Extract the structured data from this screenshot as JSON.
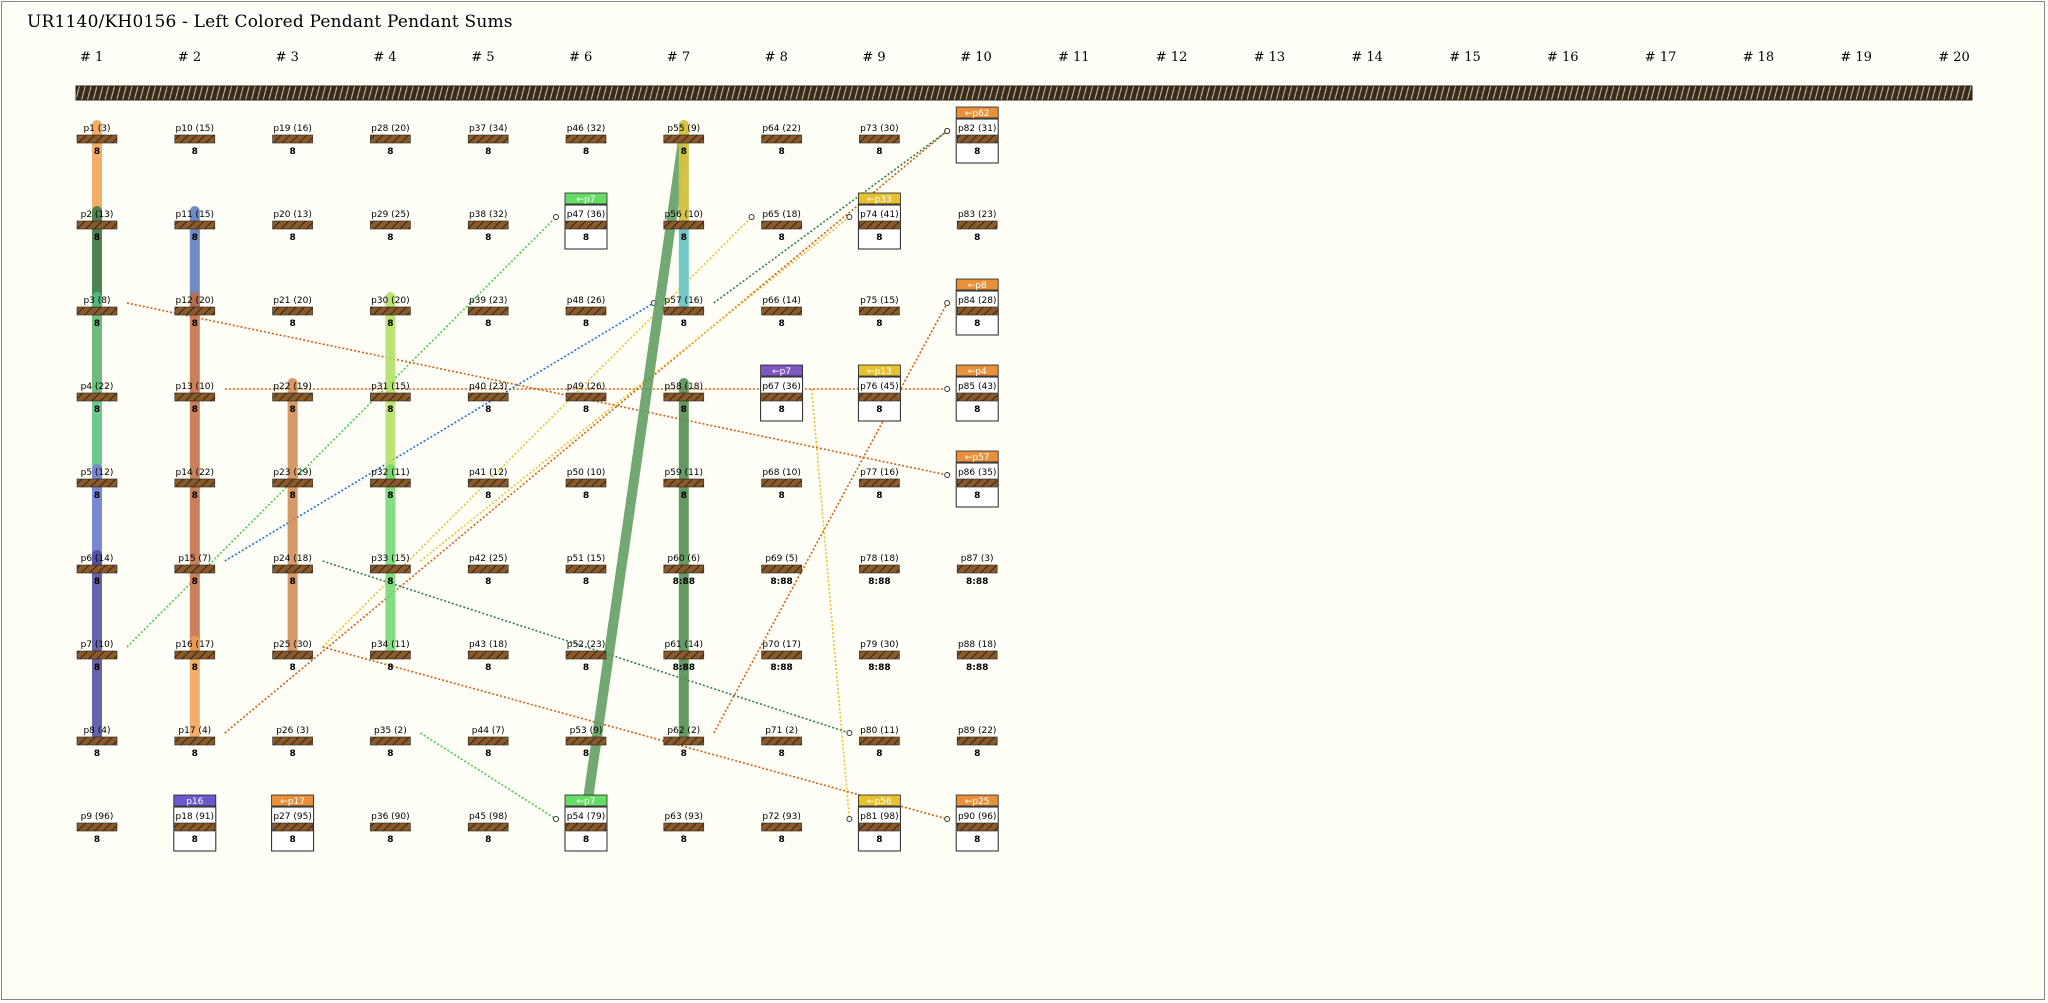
{
  "title": "UR1140/KH0156 - Left Colored Pendant Pendant Sums",
  "columns": [
    "# 1",
    "# 2",
    "# 3",
    "# 4",
    "# 5",
    "# 6",
    "# 7",
    "# 8",
    "# 9",
    "# 10",
    "# 11",
    "# 12",
    "# 13",
    "# 14",
    "# 15",
    "# 16",
    "# 17",
    "# 18",
    "# 19",
    "# 20"
  ],
  "pendants": [
    {
      "col": 1,
      "row": 1,
      "label": "p1 (3)",
      "knot": "8"
    },
    {
      "col": 1,
      "row": 2,
      "label": "p2 (13)",
      "knot": "8"
    },
    {
      "col": 1,
      "row": 3,
      "label": "p3 (8)",
      "knot": "8"
    },
    {
      "col": 1,
      "row": 4,
      "label": "p4 (22)",
      "knot": "8"
    },
    {
      "col": 1,
      "row": 5,
      "label": "p5 (12)",
      "knot": "8"
    },
    {
      "col": 1,
      "row": 6,
      "label": "p6 (14)",
      "knot": "8"
    },
    {
      "col": 1,
      "row": 7,
      "label": "p7 (10)",
      "knot": "8"
    },
    {
      "col": 1,
      "row": 8,
      "label": "p8 (4)",
      "knot": "8"
    },
    {
      "col": 1,
      "row": 9,
      "label": "p9 (96)",
      "knot": "8"
    },
    {
      "col": 2,
      "row": 1,
      "label": "p10 (15)",
      "knot": "8"
    },
    {
      "col": 2,
      "row": 2,
      "label": "p11 (15)",
      "knot": "8"
    },
    {
      "col": 2,
      "row": 3,
      "label": "p12 (20)",
      "knot": "8"
    },
    {
      "col": 2,
      "row": 4,
      "label": "p13 (10)",
      "knot": "8"
    },
    {
      "col": 2,
      "row": 5,
      "label": "p14 (22)",
      "knot": "8"
    },
    {
      "col": 2,
      "row": 6,
      "label": "p15 (7)",
      "knot": "8"
    },
    {
      "col": 2,
      "row": 7,
      "label": "p16 (17)",
      "knot": "8"
    },
    {
      "col": 2,
      "row": 8,
      "label": "p17 (4)",
      "knot": "8"
    },
    {
      "col": 2,
      "row": 9,
      "label": "p18 (91)",
      "knot": "8",
      "tag": "p16",
      "tagColor": "#6a5acd",
      "boxed": true
    },
    {
      "col": 3,
      "row": 1,
      "label": "p19 (16)",
      "knot": "8"
    },
    {
      "col": 3,
      "row": 2,
      "label": "p20 (13)",
      "knot": "8"
    },
    {
      "col": 3,
      "row": 3,
      "label": "p21 (20)",
      "knot": "8"
    },
    {
      "col": 3,
      "row": 4,
      "label": "p22 (19)",
      "knot": "8"
    },
    {
      "col": 3,
      "row": 5,
      "label": "p23 (29)",
      "knot": "8"
    },
    {
      "col": 3,
      "row": 6,
      "label": "p24 (18)",
      "knot": "8"
    },
    {
      "col": 3,
      "row": 7,
      "label": "p25 (30)",
      "knot": "8"
    },
    {
      "col": 3,
      "row": 8,
      "label": "p26 (3)",
      "knot": "8"
    },
    {
      "col": 3,
      "row": 9,
      "label": "p27 (95)",
      "knot": "8",
      "tag": "←p17",
      "tagColor": "#e8913a",
      "boxed": true
    },
    {
      "col": 4,
      "row": 1,
      "label": "p28 (20)",
      "knot": "8"
    },
    {
      "col": 4,
      "row": 2,
      "label": "p29 (25)",
      "knot": "8"
    },
    {
      "col": 4,
      "row": 3,
      "label": "p30 (20)",
      "knot": "8"
    },
    {
      "col": 4,
      "row": 4,
      "label": "p31 (15)",
      "knot": "8"
    },
    {
      "col": 4,
      "row": 5,
      "label": "p32 (11)",
      "knot": "8"
    },
    {
      "col": 4,
      "row": 6,
      "label": "p33 (15)",
      "knot": "8"
    },
    {
      "col": 4,
      "row": 7,
      "label": "p34 (11)",
      "knot": "8"
    },
    {
      "col": 4,
      "row": 8,
      "label": "p35 (2)",
      "knot": "8"
    },
    {
      "col": 4,
      "row": 9,
      "label": "p36 (90)",
      "knot": "8"
    },
    {
      "col": 5,
      "row": 1,
      "label": "p37 (34)",
      "knot": "8"
    },
    {
      "col": 5,
      "row": 2,
      "label": "p38 (32)",
      "knot": "8"
    },
    {
      "col": 5,
      "row": 3,
      "label": "p39 (23)",
      "knot": "8"
    },
    {
      "col": 5,
      "row": 4,
      "label": "p40 (23)",
      "knot": "8"
    },
    {
      "col": 5,
      "row": 5,
      "label": "p41 (12)",
      "knot": "8"
    },
    {
      "col": 5,
      "row": 6,
      "label": "p42 (25)",
      "knot": "8"
    },
    {
      "col": 5,
      "row": 7,
      "label": "p43 (18)",
      "knot": "8"
    },
    {
      "col": 5,
      "row": 8,
      "label": "p44 (7)",
      "knot": "8"
    },
    {
      "col": 5,
      "row": 9,
      "label": "p45 (98)",
      "knot": "8"
    },
    {
      "col": 6,
      "row": 1,
      "label": "p46 (32)",
      "knot": "8"
    },
    {
      "col": 6,
      "row": 2,
      "label": "p47 (36)",
      "knot": "8",
      "tag": "←p7",
      "tagColor": "#66dd66",
      "boxed": true
    },
    {
      "col": 6,
      "row": 3,
      "label": "p48 (26)",
      "knot": "8"
    },
    {
      "col": 6,
      "row": 4,
      "label": "p49 (26)",
      "knot": "8"
    },
    {
      "col": 6,
      "row": 5,
      "label": "p50 (10)",
      "knot": "8"
    },
    {
      "col": 6,
      "row": 6,
      "label": "p51 (15)",
      "knot": "8"
    },
    {
      "col": 6,
      "row": 7,
      "label": "p52 (23)",
      "knot": "8"
    },
    {
      "col": 6,
      "row": 8,
      "label": "p53 (9)",
      "knot": "8"
    },
    {
      "col": 6,
      "row": 9,
      "label": "p54 (79)",
      "knot": "8",
      "tag": "←p7",
      "tagColor": "#66dd66",
      "boxed": true
    },
    {
      "col": 7,
      "row": 1,
      "label": "p55 (9)",
      "knot": "8"
    },
    {
      "col": 7,
      "row": 2,
      "label": "p56 (10)",
      "knot": "8"
    },
    {
      "col": 7,
      "row": 3,
      "label": "p57 (16)",
      "knot": "8"
    },
    {
      "col": 7,
      "row": 4,
      "label": "p58 (18)",
      "knot": "8"
    },
    {
      "col": 7,
      "row": 5,
      "label": "p59 (11)",
      "knot": "8"
    },
    {
      "col": 7,
      "row": 6,
      "label": "p60 (6)",
      "knot": "8:88"
    },
    {
      "col": 7,
      "row": 7,
      "label": "p61 (14)",
      "knot": "8:88"
    },
    {
      "col": 7,
      "row": 8,
      "label": "p62 (2)",
      "knot": "8"
    },
    {
      "col": 7,
      "row": 9,
      "label": "p63 (93)",
      "knot": "8"
    },
    {
      "col": 8,
      "row": 1,
      "label": "p64 (22)",
      "knot": "8"
    },
    {
      "col": 8,
      "row": 2,
      "label": "p65 (18)",
      "knot": "8"
    },
    {
      "col": 8,
      "row": 3,
      "label": "p66 (14)",
      "knot": "8"
    },
    {
      "col": 8,
      "row": 4,
      "label": "p67 (36)",
      "knot": "8",
      "tag": "←p7",
      "tagColor": "#7e57c2",
      "boxed": true
    },
    {
      "col": 8,
      "row": 5,
      "label": "p68 (10)",
      "knot": "8"
    },
    {
      "col": 8,
      "row": 6,
      "label": "p69 (5)",
      "knot": "8:88"
    },
    {
      "col": 8,
      "row": 7,
      "label": "p70 (17)",
      "knot": "8:88"
    },
    {
      "col": 8,
      "row": 8,
      "label": "p71 (2)",
      "knot": "8"
    },
    {
      "col": 8,
      "row": 9,
      "label": "p72 (93)",
      "knot": "8"
    },
    {
      "col": 9,
      "row": 1,
      "label": "p73 (30)",
      "knot": "8"
    },
    {
      "col": 9,
      "row": 2,
      "label": "p74 (41)",
      "knot": "8",
      "tag": "←p33",
      "tagColor": "#e6c230",
      "boxed": true
    },
    {
      "col": 9,
      "row": 3,
      "label": "p75 (15)",
      "knot": "8"
    },
    {
      "col": 9,
      "row": 4,
      "label": "p76 (45)",
      "knot": "8",
      "tag": "←p13",
      "tagColor": "#e6c230",
      "boxed": true
    },
    {
      "col": 9,
      "row": 5,
      "label": "p77 (16)",
      "knot": "8"
    },
    {
      "col": 9,
      "row": 6,
      "label": "p78 (18)",
      "knot": "8:88"
    },
    {
      "col": 9,
      "row": 7,
      "label": "p79 (30)",
      "knot": "8:88"
    },
    {
      "col": 9,
      "row": 8,
      "label": "p80 (11)",
      "knot": "8"
    },
    {
      "col": 9,
      "row": 9,
      "label": "p81 (98)",
      "knot": "8",
      "tag": "←p56",
      "tagColor": "#e6c230",
      "boxed": true
    },
    {
      "col": 10,
      "row": 1,
      "label": "p82 (31)",
      "knot": "8",
      "tag": "←p62",
      "tagColor": "#e8913a",
      "boxed": true
    },
    {
      "col": 10,
      "row": 2,
      "label": "p83 (23)",
      "knot": "8"
    },
    {
      "col": 10,
      "row": 3,
      "label": "p84 (28)",
      "knot": "8",
      "tag": "←p8",
      "tagColor": "#e8913a",
      "boxed": true
    },
    {
      "col": 10,
      "row": 4,
      "label": "p85 (43)",
      "knot": "8",
      "tag": "←p4",
      "tagColor": "#e8913a",
      "boxed": true
    },
    {
      "col": 10,
      "row": 5,
      "label": "p86 (35)",
      "knot": "8",
      "tag": "←p57",
      "tagColor": "#e8913a",
      "boxed": true
    },
    {
      "col": 10,
      "row": 6,
      "label": "p87 (3)",
      "knot": "8:88"
    },
    {
      "col": 10,
      "row": 7,
      "label": "p88 (18)",
      "knot": "8:88"
    },
    {
      "col": 10,
      "row": 8,
      "label": "p89 (22)",
      "knot": "8"
    },
    {
      "col": 10,
      "row": 9,
      "label": "p90 (96)",
      "knot": "8",
      "tag": "←p25",
      "tagColor": "#e8913a",
      "boxed": true
    }
  ],
  "cords": [
    {
      "from": [
        1,
        1
      ],
      "to": [
        1,
        4
      ],
      "color": "#f0a050"
    },
    {
      "from": [
        1,
        2
      ],
      "to": [
        1,
        3
      ],
      "color": "#2e7d4f"
    },
    {
      "from": [
        1,
        3
      ],
      "to": [
        1,
        6
      ],
      "color": "#55c080"
    },
    {
      "from": [
        1,
        5
      ],
      "to": [
        1,
        6
      ],
      "color": "#7b7bdd"
    },
    {
      "from": [
        1,
        6
      ],
      "to": [
        1,
        8
      ],
      "color": "#4a4a9a"
    },
    {
      "from": [
        2,
        2
      ],
      "to": [
        2,
        3
      ],
      "color": "#5577bb"
    },
    {
      "from": [
        2,
        3
      ],
      "to": [
        2,
        7
      ],
      "color": "#c06a40"
    },
    {
      "from": [
        2,
        7
      ],
      "to": [
        2,
        8
      ],
      "color": "#f0a050"
    },
    {
      "from": [
        3,
        4
      ],
      "to": [
        3,
        7
      ],
      "color": "#d08850"
    },
    {
      "from": [
        4,
        3
      ],
      "to": [
        4,
        5
      ],
      "color": "#aee060"
    },
    {
      "from": [
        4,
        5
      ],
      "to": [
        4,
        7
      ],
      "color": "#6ed86e"
    },
    {
      "from": [
        6,
        9
      ],
      "to": [
        7,
        1
      ],
      "color": "#5a9a5a"
    },
    {
      "from": [
        7,
        1
      ],
      "to": [
        7,
        3
      ],
      "color": "#5bc0c0"
    },
    {
      "from": [
        7,
        4
      ],
      "to": [
        7,
        8
      ],
      "color": "#4a8a4a"
    },
    {
      "from": [
        7,
        1
      ],
      "to": [
        7,
        2
      ],
      "color": "#e6c230"
    }
  ],
  "links": [
    {
      "from": [
        1,
        7
      ],
      "to": [
        6,
        2
      ],
      "color": "#44cc44"
    },
    {
      "from": [
        2,
        4
      ],
      "to": [
        10,
        4
      ],
      "color": "#d06010"
    },
    {
      "from": [
        1,
        3
      ],
      "to": [
        10,
        5
      ],
      "color": "#d06010"
    },
    {
      "from": [
        3,
        7
      ],
      "to": [
        8,
        2
      ],
      "color": "#e6c230"
    },
    {
      "from": [
        2,
        8
      ],
      "to": [
        10,
        1
      ],
      "color": "#d06010"
    },
    {
      "from": [
        4,
        6
      ],
      "to": [
        9,
        2
      ],
      "color": "#e6c230"
    },
    {
      "from": [
        7,
        8
      ],
      "to": [
        10,
        3
      ],
      "color": "#d06010"
    },
    {
      "from": [
        8,
        4
      ],
      "to": [
        9,
        9
      ],
      "color": "#e6c230"
    },
    {
      "from": [
        3,
        6
      ],
      "to": [
        9,
        8
      ],
      "color": "#2e7d4f"
    },
    {
      "from": [
        4,
        8
      ],
      "to": [
        6,
        9
      ],
      "color": "#44cc44"
    },
    {
      "from": [
        3,
        7
      ],
      "to": [
        10,
        9
      ],
      "color": "#d06010"
    },
    {
      "from": [
        7,
        3
      ],
      "to": [
        10,
        1
      ],
      "color": "#2e7d4f"
    },
    {
      "from": [
        2,
        6
      ],
      "to": [
        7,
        3
      ],
      "color": "#1f6fd6"
    }
  ]
}
